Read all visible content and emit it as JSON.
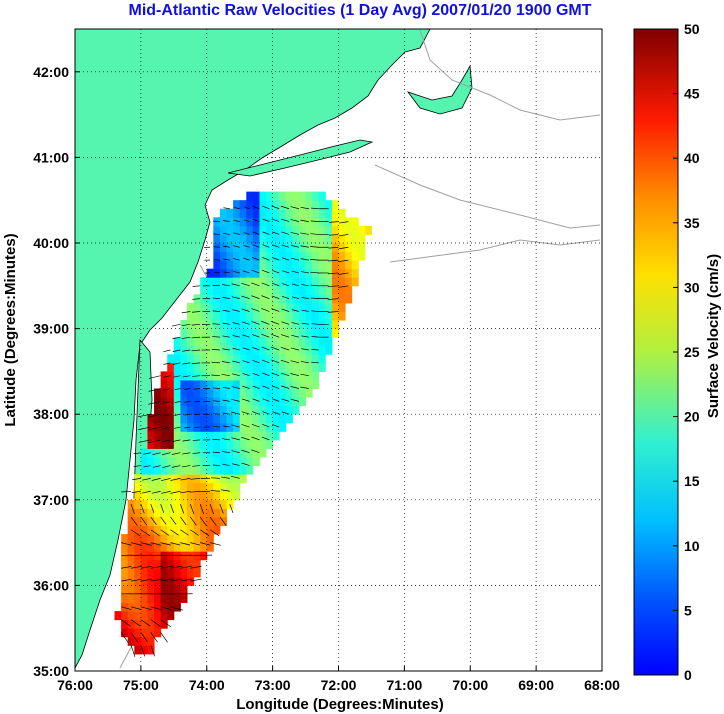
{
  "chart_data": {
    "type": "heatmap",
    "title": "Mid-Atlantic Raw Velocities (1 Day Avg) 2007/01/20 1900 GMT",
    "xlabel": "Longitude (Degrees:Minutes)",
    "ylabel": "Latitude (Degrees:Minutes)",
    "xlim": [
      -76,
      -68
    ],
    "ylim": [
      35,
      42.5
    ],
    "x_ticks": [
      "76:00",
      "75:00",
      "74:00",
      "73:00",
      "72:00",
      "71:00",
      "70:00",
      "69:00",
      "68:00"
    ],
    "y_ticks": [
      "35:00",
      "36:00",
      "37:00",
      "38:00",
      "39:00",
      "40:00",
      "41:00",
      "42:00"
    ],
    "grid": true,
    "colorbar": {
      "label": "Surface Velocity (cm/s)",
      "range": [
        0,
        50
      ],
      "ticks": [
        "0",
        "5",
        "10",
        "15",
        "20",
        "25",
        "30",
        "35",
        "40",
        "45",
        "50"
      ],
      "colormap": "jet"
    },
    "colors": {
      "land": "#55f5b0",
      "title": "#1010e0",
      "coast_contour": "#a0a0a0",
      "vector": "#000000"
    }
  }
}
